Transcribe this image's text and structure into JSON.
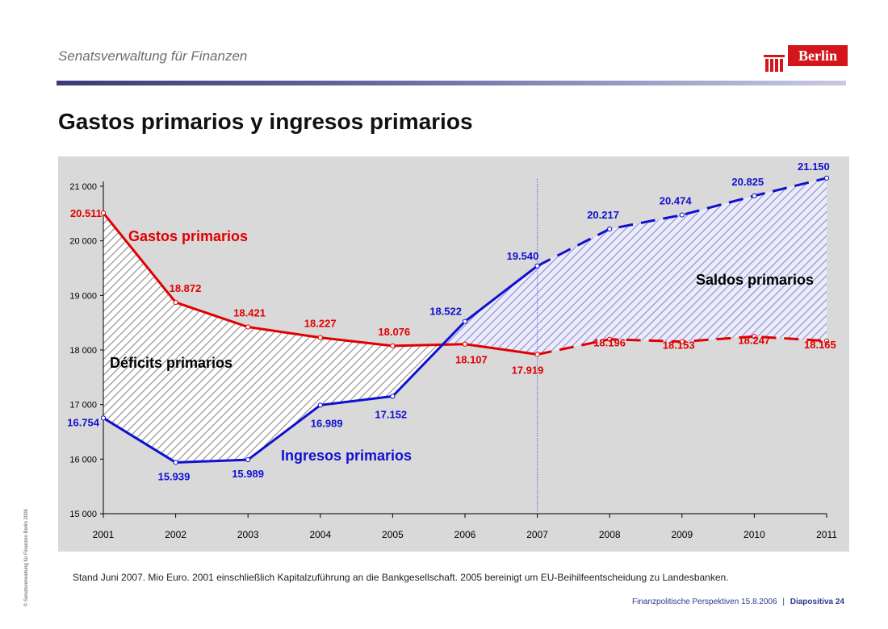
{
  "header": {
    "org": "Senatsverwaltung für Finanzen",
    "title": "Gastos primarios y ingresos primarios",
    "logo_text": "Berlin"
  },
  "footer": {
    "note": "Stand Juni 2007. Mio Euro. 2001 einschließlich Kapitalzuführung an die Bankgesellschaft. 2005 bereinigt um EU-Beihilfeentscheidung zu Landesbanken.",
    "source": "Finanzpolitische Perspektiven 15.8.2006",
    "separator": "|",
    "page": "Diapositiva 24",
    "copyright": "© Senatsverwaltung für Finanzen Berlin 2006"
  },
  "colors": {
    "gastos": "#e00000",
    "ingresos": "#1010d0",
    "plot_bg": "#d9d9d9",
    "logo": "#d4161c"
  },
  "chart_data": {
    "type": "line",
    "categories": [
      "2001",
      "2002",
      "2003",
      "2004",
      "2005",
      "2006",
      "2007",
      "2008",
      "2009",
      "2010",
      "2011"
    ],
    "ylim": [
      15000,
      21000
    ],
    "yticks": [
      15000,
      16000,
      17000,
      18000,
      19000,
      20000,
      21000
    ],
    "ytick_labels": [
      "15 000",
      "16 000",
      "17 000",
      "18 000",
      "19 000",
      "20 000",
      "21 000"
    ],
    "projection_start": "2007",
    "grid": false,
    "series": [
      {
        "name": "Gastos primarios",
        "key": "gastos",
        "values": [
          20511,
          18872,
          18421,
          18227,
          18076,
          18107,
          17919,
          18196,
          18153,
          18247,
          18165
        ],
        "labels": [
          "20.511",
          "18.872",
          "18.421",
          "18.227",
          "18.076",
          "18.107",
          "17.919",
          "18.196",
          "18.153",
          "18.247",
          "18.165"
        ]
      },
      {
        "name": "Ingresos primarios",
        "key": "ingresos",
        "values": [
          16754,
          15939,
          15989,
          16989,
          17152,
          18522,
          19540,
          20217,
          20474,
          20825,
          21150
        ],
        "labels": [
          "16.754",
          "15.939",
          "15.989",
          "16.989",
          "17.152",
          "18.522",
          "19.540",
          "20.217",
          "20.474",
          "20.825",
          "21.150"
        ]
      }
    ],
    "annotations": {
      "deficit": "Déficits primarios",
      "saldo": "Saldos primarios"
    }
  }
}
